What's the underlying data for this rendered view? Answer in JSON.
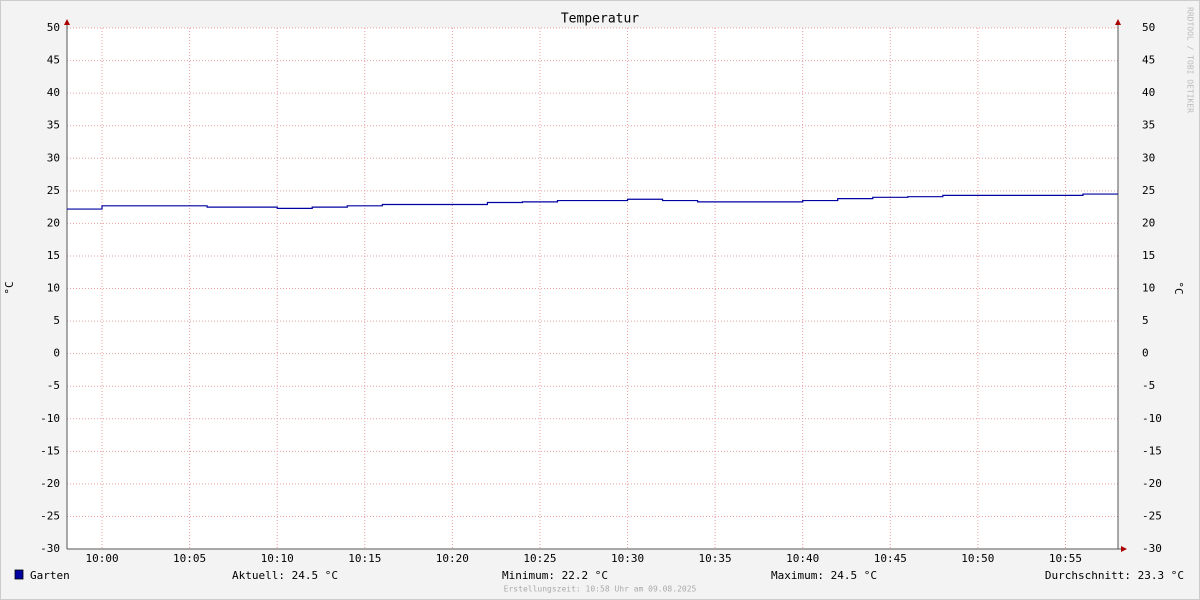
{
  "chart_data": {
    "type": "line",
    "step": true,
    "title": "Temperatur",
    "ylabel": "°C",
    "watermark": "RRDTOOL / TOBI OETIKER",
    "x": [
      "09:58",
      "10:00",
      "10:06",
      "10:10",
      "10:12",
      "10:14",
      "10:16",
      "10:22",
      "10:24",
      "10:26",
      "10:30",
      "10:32",
      "10:34",
      "10:40",
      "10:42",
      "10:44",
      "10:46",
      "10:48",
      "10:56",
      "10:58"
    ],
    "series": [
      {
        "name": "Garten",
        "color": "#0000a0",
        "values": [
          22.2,
          22.7,
          22.5,
          22.3,
          22.5,
          22.7,
          22.9,
          23.2,
          23.3,
          23.5,
          23.7,
          23.5,
          23.3,
          23.5,
          23.8,
          24.0,
          24.1,
          24.3,
          24.5,
          24.5
        ]
      }
    ],
    "xlim": [
      "09:58",
      "10:58"
    ],
    "xticks": [
      "10:00",
      "10:05",
      "10:10",
      "10:15",
      "10:20",
      "10:25",
      "10:30",
      "10:35",
      "10:40",
      "10:45",
      "10:50",
      "10:55"
    ],
    "ylim": [
      -30,
      50
    ],
    "yticks": [
      -30,
      -25,
      -20,
      -15,
      -10,
      -5,
      0,
      5,
      10,
      15,
      20,
      25,
      30,
      35,
      40,
      45,
      50
    ],
    "grid": true,
    "stats": [
      "Aktuell: 24.5 °C",
      "Minimum: 22.2 °C",
      "Maximum: 24.5 °C",
      "Durchschnitt: 23.3 °C"
    ],
    "footer": "Erstellungszeit: 10:58 Uhr am 09.08.2025"
  }
}
